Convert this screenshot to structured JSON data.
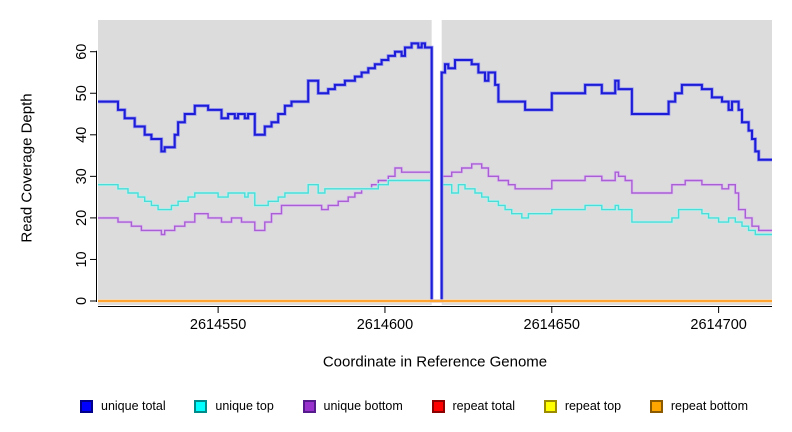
{
  "chart_data": {
    "type": "line",
    "subtype": "step-after",
    "title": "",
    "xlabel": "Coordinate in Reference Genome",
    "ylabel": "Read Coverage Depth",
    "x_domain": [
      2614514,
      2614716
    ],
    "y_domain": [
      0,
      62
    ],
    "grid": "off",
    "legend_position": "bottom",
    "colors": {
      "plot_bg": "#dcdcdc",
      "gap_band": "#ffffff",
      "axis": "#000000"
    },
    "gap_region": {
      "from": 2614614,
      "to": 2614617
    },
    "axes": {
      "x": {
        "ticks": [
          {
            "value": 2614550,
            "label": "2614550"
          },
          {
            "value": 2614600,
            "label": "2614600"
          },
          {
            "value": 2614650,
            "label": "2614650"
          },
          {
            "value": 2614700,
            "label": "2614700"
          }
        ]
      },
      "y": {
        "ticks": [
          {
            "value": 0,
            "label": "0"
          },
          {
            "value": 10,
            "label": "10"
          },
          {
            "value": 20,
            "label": "20"
          },
          {
            "value": 30,
            "label": "30"
          },
          {
            "value": 40,
            "label": "40"
          },
          {
            "value": 50,
            "label": "50"
          },
          {
            "value": 60,
            "label": "60"
          }
        ]
      }
    },
    "series": [
      {
        "id": "unique-bottom",
        "name": "unique bottom",
        "color": "#a95fd3",
        "halo": "#ddc2f0",
        "width": 1.4,
        "points": [
          [
            2614514,
            20
          ],
          [
            2614520,
            19
          ],
          [
            2614524,
            18
          ],
          [
            2614527,
            17
          ],
          [
            2614533,
            16
          ],
          [
            2614534,
            17
          ],
          [
            2614537,
            18
          ],
          [
            2614540,
            19
          ],
          [
            2614543,
            21
          ],
          [
            2614547,
            20
          ],
          [
            2614551,
            19
          ],
          [
            2614554,
            20
          ],
          [
            2614557,
            19
          ],
          [
            2614561,
            17
          ],
          [
            2614564,
            19
          ],
          [
            2614566,
            21
          ],
          [
            2614569,
            23
          ],
          [
            2614581,
            22
          ],
          [
            2614583,
            23
          ],
          [
            2614586,
            24
          ],
          [
            2614589,
            25
          ],
          [
            2614591,
            26
          ],
          [
            2614593,
            27
          ],
          [
            2614596,
            28
          ],
          [
            2614598,
            29
          ],
          [
            2614601,
            30
          ],
          [
            2614603,
            32
          ],
          [
            2614605,
            31
          ],
          [
            2614614,
            0
          ],
          [
            2614617,
            30
          ],
          [
            2614620,
            31
          ],
          [
            2614623,
            32
          ],
          [
            2614626,
            33
          ],
          [
            2614629,
            32
          ],
          [
            2614631,
            30
          ],
          [
            2614634,
            29
          ],
          [
            2614637,
            28
          ],
          [
            2614639,
            27
          ],
          [
            2614650,
            29
          ],
          [
            2614660,
            30
          ],
          [
            2614665,
            29
          ],
          [
            2614669,
            31
          ],
          [
            2614670,
            30
          ],
          [
            2614672,
            29
          ],
          [
            2614674,
            26
          ],
          [
            2614686,
            28
          ],
          [
            2614690,
            29
          ],
          [
            2614695,
            28
          ],
          [
            2614701,
            27
          ],
          [
            2614703,
            28
          ],
          [
            2614705,
            26
          ],
          [
            2614706,
            22
          ],
          [
            2614708,
            20
          ],
          [
            2614710,
            18
          ],
          [
            2614712,
            17
          ]
        ]
      },
      {
        "id": "unique-top",
        "name": "unique top",
        "color": "#4cdcd8",
        "halo": "#b8f2ef",
        "width": 1.4,
        "points": [
          [
            2614514,
            28
          ],
          [
            2614520,
            27
          ],
          [
            2614523,
            26
          ],
          [
            2614526,
            25
          ],
          [
            2614528,
            24
          ],
          [
            2614530,
            23
          ],
          [
            2614532,
            22
          ],
          [
            2614536,
            23
          ],
          [
            2614538,
            24
          ],
          [
            2614541,
            25
          ],
          [
            2614543,
            26
          ],
          [
            2614550,
            25
          ],
          [
            2614553,
            26
          ],
          [
            2614558,
            25
          ],
          [
            2614559,
            26
          ],
          [
            2614561,
            23
          ],
          [
            2614565,
            24
          ],
          [
            2614568,
            25
          ],
          [
            2614570,
            26
          ],
          [
            2614577,
            28
          ],
          [
            2614580,
            26
          ],
          [
            2614582,
            27
          ],
          [
            2614598,
            28
          ],
          [
            2614601,
            29
          ],
          [
            2614604,
            29
          ],
          [
            2614611,
            29
          ],
          [
            2614614,
            0
          ],
          [
            2614617,
            28
          ],
          [
            2614620,
            26
          ],
          [
            2614622,
            28
          ],
          [
            2614624,
            27
          ],
          [
            2614627,
            26
          ],
          [
            2614629,
            25
          ],
          [
            2614631,
            24
          ],
          [
            2614634,
            23
          ],
          [
            2614636,
            22
          ],
          [
            2614638,
            21
          ],
          [
            2614641,
            20
          ],
          [
            2614643,
            21
          ],
          [
            2614650,
            22
          ],
          [
            2614660,
            23
          ],
          [
            2614665,
            22
          ],
          [
            2614669,
            23
          ],
          [
            2614670,
            22
          ],
          [
            2614674,
            19
          ],
          [
            2614686,
            20
          ],
          [
            2614688,
            22
          ],
          [
            2614695,
            21
          ],
          [
            2614697,
            20
          ],
          [
            2614700,
            19
          ],
          [
            2614703,
            20
          ],
          [
            2614705,
            19
          ],
          [
            2614707,
            18
          ],
          [
            2614709,
            17
          ],
          [
            2614711,
            16
          ]
        ]
      },
      {
        "id": "unique-total",
        "name": "unique total",
        "color": "#1d1dd8",
        "halo": "#9a9af0",
        "width": 2,
        "points": [
          [
            2614514,
            48
          ],
          [
            2614520,
            46
          ],
          [
            2614522,
            44
          ],
          [
            2614525,
            42
          ],
          [
            2614528,
            40
          ],
          [
            2614530,
            39
          ],
          [
            2614533,
            36
          ],
          [
            2614534,
            37
          ],
          [
            2614537,
            40
          ],
          [
            2614538,
            43
          ],
          [
            2614540,
            45
          ],
          [
            2614543,
            47
          ],
          [
            2614547,
            46
          ],
          [
            2614551,
            44
          ],
          [
            2614553,
            45
          ],
          [
            2614555,
            44
          ],
          [
            2614556,
            45
          ],
          [
            2614558,
            44
          ],
          [
            2614559,
            45
          ],
          [
            2614561,
            40
          ],
          [
            2614564,
            42
          ],
          [
            2614566,
            43
          ],
          [
            2614568,
            45
          ],
          [
            2614570,
            47
          ],
          [
            2614572,
            48
          ],
          [
            2614577,
            53
          ],
          [
            2614580,
            50
          ],
          [
            2614583,
            51
          ],
          [
            2614585,
            52
          ],
          [
            2614588,
            53
          ],
          [
            2614591,
            54
          ],
          [
            2614593,
            55
          ],
          [
            2614595,
            56
          ],
          [
            2614597,
            57
          ],
          [
            2614599,
            58
          ],
          [
            2614601,
            59
          ],
          [
            2614603,
            60
          ],
          [
            2614605,
            59
          ],
          [
            2614606,
            61
          ],
          [
            2614608,
            62
          ],
          [
            2614610,
            61
          ],
          [
            2614611,
            62
          ],
          [
            2614612,
            61
          ],
          [
            2614614,
            0
          ],
          [
            2614617,
            55
          ],
          [
            2614618,
            57
          ],
          [
            2614619,
            56
          ],
          [
            2614621,
            58
          ],
          [
            2614626,
            57
          ],
          [
            2614628,
            55
          ],
          [
            2614630,
            53
          ],
          [
            2614631,
            55
          ],
          [
            2614633,
            52
          ],
          [
            2614634,
            48
          ],
          [
            2614642,
            46
          ],
          [
            2614650,
            50
          ],
          [
            2614660,
            52
          ],
          [
            2614665,
            50
          ],
          [
            2614669,
            53
          ],
          [
            2614670,
            51
          ],
          [
            2614674,
            45
          ],
          [
            2614685,
            48
          ],
          [
            2614687,
            50
          ],
          [
            2614689,
            52
          ],
          [
            2614695,
            51
          ],
          [
            2614698,
            49
          ],
          [
            2614701,
            48
          ],
          [
            2614703,
            46
          ],
          [
            2614704,
            48
          ],
          [
            2614706,
            46
          ],
          [
            2614707,
            43
          ],
          [
            2614709,
            41
          ],
          [
            2614710,
            39
          ],
          [
            2614711,
            36
          ],
          [
            2614712,
            34
          ]
        ]
      },
      {
        "id": "repeat-total",
        "name": "repeat total",
        "color": "#d40000",
        "halo": null,
        "width": 1.6,
        "points": [
          [
            2614514,
            0
          ]
        ]
      },
      {
        "id": "repeat-top",
        "name": "repeat top",
        "color": "#f5e400",
        "halo": null,
        "width": 1.6,
        "points": [
          [
            2614514,
            0
          ]
        ]
      },
      {
        "id": "repeat-bottom",
        "name": "repeat bottom",
        "color": "#ff9c20",
        "halo": "#ffd9a8",
        "width": 1.8,
        "points": [
          [
            2614514,
            0
          ]
        ]
      }
    ],
    "legend": [
      {
        "label": "unique total",
        "fill": "#0000ff",
        "border": "#00008b"
      },
      {
        "label": "unique top",
        "fill": "#00ffff",
        "border": "#008b8b"
      },
      {
        "label": "unique bottom",
        "fill": "#9932cc",
        "border": "#551a8b"
      },
      {
        "label": "repeat total",
        "fill": "#ff0000",
        "border": "#8b0000"
      },
      {
        "label": "repeat top",
        "fill": "#ffff00",
        "border": "#9b8b00"
      },
      {
        "label": "repeat bottom",
        "fill": "#ffa500",
        "border": "#8b5a00"
      }
    ]
  }
}
